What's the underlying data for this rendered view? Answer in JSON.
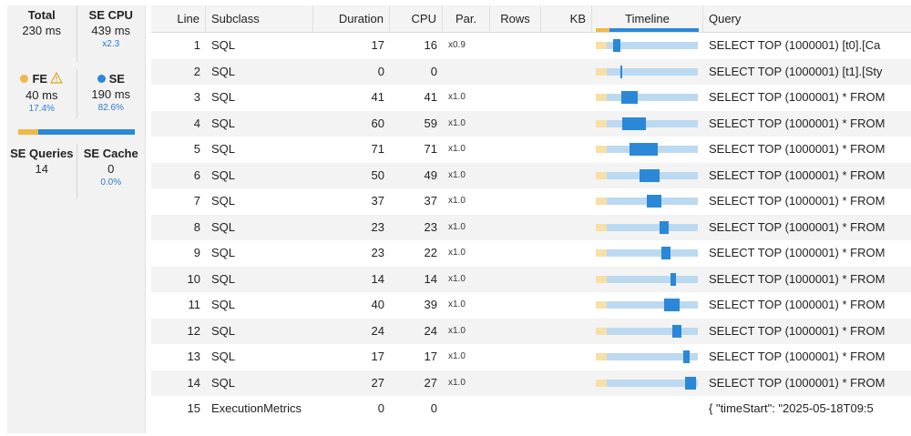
{
  "summary": {
    "total": {
      "title": "Total",
      "value": "230 ms"
    },
    "se_cpu": {
      "title": "SE CPU",
      "value": "439 ms",
      "sub": "x2.3"
    },
    "fe": {
      "title": "FE",
      "value": "40 ms",
      "pct": "17.4%",
      "color": "#f0b849",
      "fraction": 0.174
    },
    "se": {
      "title": "SE",
      "value": "190 ms",
      "pct": "82.6%",
      "color": "#2b88d8"
    },
    "se_queries": {
      "title": "SE Queries",
      "value": "14"
    },
    "se_cache": {
      "title": "SE Cache",
      "value": "0",
      "pct": "0.0%"
    }
  },
  "columns": {
    "line": "Line",
    "subclass": "Subclass",
    "duration": "Duration",
    "cpu": "CPU",
    "par": "Par.",
    "rows": "Rows",
    "kb": "KB",
    "timeline": "Timeline",
    "query": "Query"
  },
  "rows": [
    {
      "line": "1",
      "subclass": "SQL",
      "duration": "17",
      "cpu": "16",
      "par": "x0.9",
      "rows": "",
      "kb": "",
      "query": "SELECT TOP (1000001) [t0].[Ca",
      "tl_start": 0.074,
      "tl_width": 0.074
    },
    {
      "line": "2",
      "subclass": "SQL",
      "duration": "0",
      "cpu": "0",
      "par": "",
      "rows": "",
      "kb": "",
      "query": "SELECT TOP (1000001) [t1].[Sty",
      "tl_start": 0.15,
      "tl_width": 0.01
    },
    {
      "line": "3",
      "subclass": "SQL",
      "duration": "41",
      "cpu": "41",
      "par": "x1.0",
      "rows": "",
      "kb": "",
      "query": "SELECT TOP (1000001) * FROM",
      "tl_start": 0.16,
      "tl_width": 0.178
    },
    {
      "line": "4",
      "subclass": "SQL",
      "duration": "60",
      "cpu": "59",
      "par": "x1.0",
      "rows": "",
      "kb": "",
      "query": "SELECT TOP (1000001) * FROM",
      "tl_start": 0.17,
      "tl_width": 0.261
    },
    {
      "line": "5",
      "subclass": "SQL",
      "duration": "71",
      "cpu": "71",
      "par": "x1.0",
      "rows": "",
      "kb": "",
      "query": "SELECT TOP (1000001) * FROM",
      "tl_start": 0.25,
      "tl_width": 0.309
    },
    {
      "line": "6",
      "subclass": "SQL",
      "duration": "50",
      "cpu": "49",
      "par": "x1.0",
      "rows": "",
      "kb": "",
      "query": "SELECT TOP (1000001) * FROM",
      "tl_start": 0.36,
      "tl_width": 0.217
    },
    {
      "line": "7",
      "subclass": "SQL",
      "duration": "37",
      "cpu": "37",
      "par": "x1.0",
      "rows": "",
      "kb": "",
      "query": "SELECT TOP (1000001) * FROM",
      "tl_start": 0.44,
      "tl_width": 0.161
    },
    {
      "line": "8",
      "subclass": "SQL",
      "duration": "23",
      "cpu": "23",
      "par": "x1.0",
      "rows": "",
      "kb": "",
      "query": "SELECT TOP (1000001) * FROM",
      "tl_start": 0.58,
      "tl_width": 0.1
    },
    {
      "line": "9",
      "subclass": "SQL",
      "duration": "23",
      "cpu": "22",
      "par": "x1.0",
      "rows": "",
      "kb": "",
      "query": "SELECT TOP (1000001) * FROM",
      "tl_start": 0.6,
      "tl_width": 0.1
    },
    {
      "line": "10",
      "subclass": "SQL",
      "duration": "14",
      "cpu": "14",
      "par": "x1.0",
      "rows": "",
      "kb": "",
      "query": "SELECT TOP (1000001) * FROM",
      "tl_start": 0.7,
      "tl_width": 0.061
    },
    {
      "line": "11",
      "subclass": "SQL",
      "duration": "40",
      "cpu": "39",
      "par": "x1.0",
      "rows": "",
      "kb": "",
      "query": "SELECT TOP (1000001) * FROM",
      "tl_start": 0.63,
      "tl_width": 0.174
    },
    {
      "line": "12",
      "subclass": "SQL",
      "duration": "24",
      "cpu": "24",
      "par": "x1.0",
      "rows": "",
      "kb": "",
      "query": "SELECT TOP (1000001) * FROM",
      "tl_start": 0.72,
      "tl_width": 0.104
    },
    {
      "line": "13",
      "subclass": "SQL",
      "duration": "17",
      "cpu": "17",
      "par": "x1.0",
      "rows": "",
      "kb": "",
      "query": "SELECT TOP (1000001) * FROM",
      "tl_start": 0.84,
      "tl_width": 0.074
    },
    {
      "line": "14",
      "subclass": "SQL",
      "duration": "27",
      "cpu": "27",
      "par": "x1.0",
      "rows": "",
      "kb": "",
      "query": "SELECT TOP (1000001) * FROM",
      "tl_start": 0.86,
      "tl_width": 0.12
    },
    {
      "line": "15",
      "subclass": "ExecutionMetrics",
      "duration": "0",
      "cpu": "0",
      "par": "",
      "rows": "",
      "kb": "",
      "query": "{ \"timeStart\": \"2025-05-18T09:5",
      "tl_start": null,
      "tl_width": null
    }
  ],
  "colors": {
    "fe": "#f0b849",
    "se": "#2b88d8",
    "track": "#bcd9f2",
    "fe_track": "#f8dfa6"
  }
}
